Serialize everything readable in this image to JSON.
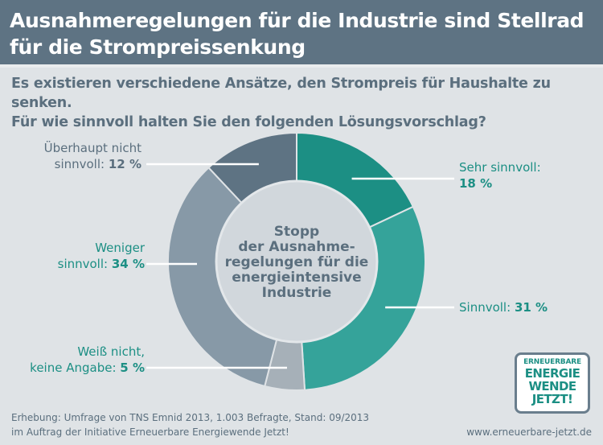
{
  "header": {
    "title_line1": "Ausnahmeregelungen für die Industrie sind Stellrad",
    "title_line2": "für die Strompreissenkung"
  },
  "question": {
    "line1": "Es existieren verschiedene Ansätze, den Strompreis für Haushalte zu senken.",
    "line2": "Für wie sinnvoll halten Sie den folgenden Lösungsvorschlag?"
  },
  "center_text": [
    "Stopp",
    "der Ausnahme-",
    "regelungen für die",
    "energieintensive",
    "Industrie"
  ],
  "labels": {
    "sehr": {
      "text": "Sehr sinnvoll:",
      "pct": "18 %"
    },
    "sinnvoll": {
      "text": "Sinnvoll:",
      "pct": "31 %"
    },
    "weiss": {
      "text_line1": "Weiß nicht,",
      "text_line2": "keine Angabe:",
      "pct": "5 %"
    },
    "weniger": {
      "text_line1": "Weniger",
      "text_line2": "sinnvoll:",
      "pct": "34 %"
    },
    "ueberhaupt": {
      "text_line1": "Überhaupt nicht",
      "text_line2": "sinnvoll:",
      "pct": "12 %"
    }
  },
  "footer": {
    "line1": "Erhebung: Umfrage von TNS Emnid 2013, 1.003 Befragte, Stand: 09/2013",
    "line2": "im Auftrag der Initiative Erneuerbare Energiewende Jetzt!",
    "url": "www.erneuerbare-jetzt.de"
  },
  "logo": {
    "line1": "ERNEUERBARE",
    "line2": "ENERGIE",
    "line3": "WENDE",
    "line4": "JETZT!"
  },
  "chart_data": {
    "type": "pie",
    "variant": "donut",
    "categories": [
      "Sehr sinnvoll",
      "Sinnvoll",
      "Weiß nicht, keine Angabe",
      "Weniger sinnvoll",
      "Überhaupt nicht sinnvoll"
    ],
    "values": [
      18,
      31,
      5,
      34,
      12
    ],
    "colors": [
      "#1c8f84",
      "#35a39a",
      "#a6b0b8",
      "#8799a7",
      "#5e7383"
    ],
    "center_fill": "#d1d7dc",
    "start": "top, clockwise"
  }
}
